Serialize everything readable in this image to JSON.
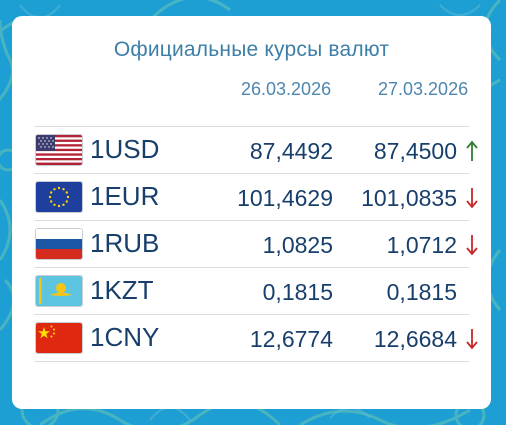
{
  "title": "Официальные курсы валют",
  "dates": [
    "26.03.2026",
    "27.03.2026"
  ],
  "colors": {
    "up": "#2e7d32",
    "down": "#c62828",
    "text": "#183f6b",
    "background": "#1d9fd3"
  },
  "rates": [
    {
      "code": "1USD",
      "flag": "usa-flag-icon",
      "rate1": "87,4492",
      "rate2": "87,4500",
      "trend": "up"
    },
    {
      "code": "1EUR",
      "flag": "eu-flag-icon",
      "rate1": "101,4629",
      "rate2": "101,0835",
      "trend": "down"
    },
    {
      "code": "1RUB",
      "flag": "russia-flag-icon",
      "rate1": "1,0825",
      "rate2": "1,0712",
      "trend": "down"
    },
    {
      "code": "1KZT",
      "flag": "kazakhstan-flag-icon",
      "rate1": "0,1815",
      "rate2": "0,1815",
      "trend": "none"
    },
    {
      "code": "1CNY",
      "flag": "china-flag-icon",
      "rate1": "12,6774",
      "rate2": "12,6684",
      "trend": "down"
    }
  ]
}
